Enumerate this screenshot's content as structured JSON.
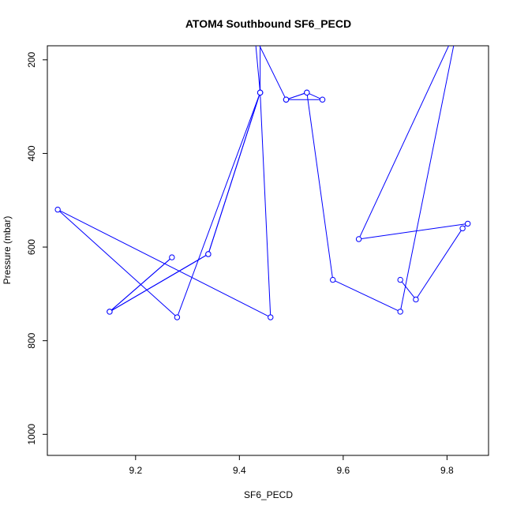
{
  "chart_data": {
    "type": "line",
    "title": "ATOM4 Southbound SF6_PECD",
    "xlabel": "SF6_PECD",
    "ylabel": "Pressure (mbar)",
    "xlim": [
      9.03,
      9.88
    ],
    "ylim": [
      1045,
      170
    ],
    "y_reversed": true,
    "x_ticks": [
      9.2,
      9.4,
      9.6,
      9.8
    ],
    "x_tick_labels": [
      "9.2",
      "9.4",
      "9.6",
      "9.8"
    ],
    "y_ticks": [
      200,
      400,
      600,
      800,
      1000
    ],
    "y_tick_labels": [
      "200",
      "400",
      "600",
      "800",
      "1000"
    ],
    "line_color": "#0000ff",
    "marker": "open-circle",
    "series": [
      {
        "points": [
          {
            "x": 9.44,
            "y": 120
          },
          {
            "x": 9.44,
            "y": 270
          },
          {
            "x": 9.28,
            "y": 750
          },
          {
            "x": 9.05,
            "y": 520
          },
          {
            "x": 9.46,
            "y": 750
          },
          {
            "x": 9.44,
            "y": 270
          },
          {
            "x": 9.34,
            "y": 615
          },
          {
            "x": 9.15,
            "y": 738
          },
          {
            "x": 9.27,
            "y": 622
          },
          {
            "x": 9.15,
            "y": 738
          },
          {
            "x": 9.34,
            "y": 615
          },
          {
            "x": 9.44,
            "y": 270
          },
          {
            "x": 9.43,
            "y": 150
          },
          {
            "x": 9.49,
            "y": 285
          },
          {
            "x": 9.53,
            "y": 270
          },
          {
            "x": 9.56,
            "y": 285
          },
          {
            "x": 9.49,
            "y": 285
          },
          {
            "x": 9.53,
            "y": 270
          },
          {
            "x": 9.58,
            "y": 670
          },
          {
            "x": 9.71,
            "y": 738
          },
          {
            "x": 9.82,
            "y": 130
          },
          {
            "x": 9.63,
            "y": 583
          },
          {
            "x": 9.84,
            "y": 550
          },
          {
            "x": 9.83,
            "y": 560
          },
          {
            "x": 9.74,
            "y": 712
          },
          {
            "x": 9.71,
            "y": 670
          }
        ]
      }
    ]
  }
}
